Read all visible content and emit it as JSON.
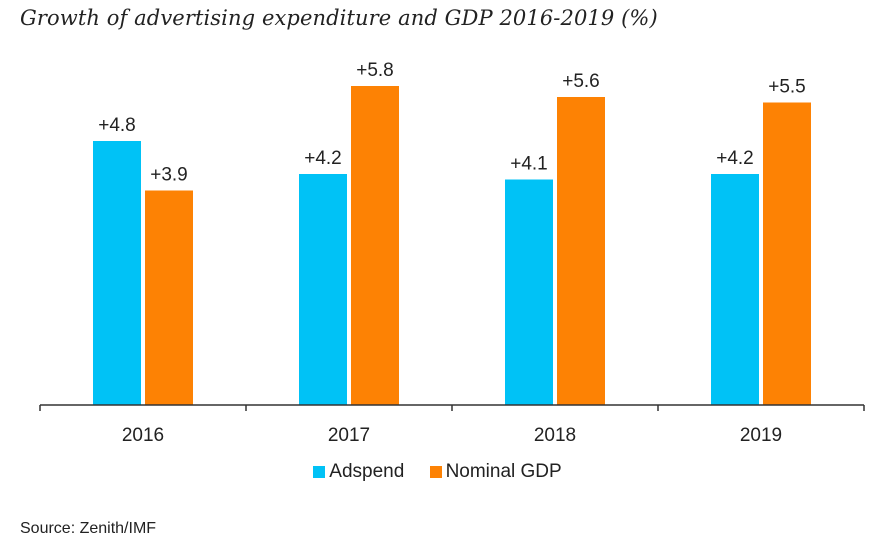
{
  "title": "Growth of advertising expenditure and GDP 2016-2019 (%)",
  "source": "Source: Zenith/IMF",
  "chart_data": {
    "type": "bar",
    "title": "Growth of advertising expenditure and GDP 2016-2019 (%)",
    "categories": [
      "2016",
      "2017",
      "2018",
      "2019"
    ],
    "series": [
      {
        "name": "Adspend",
        "color": "#00c2f6",
        "values": [
          4.8,
          4.2,
          4.1,
          4.2
        ],
        "labels": [
          "+4.8",
          "+4.2",
          "+4.1",
          "+4.2"
        ]
      },
      {
        "name": "Nominal GDP",
        "color": "#fd8204",
        "values": [
          3.9,
          5.8,
          5.6,
          5.5
        ],
        "labels": [
          "+3.9",
          "+5.8",
          "+5.6",
          "+5.5"
        ]
      }
    ],
    "ylim": [
      0,
      6
    ],
    "grid": false,
    "legend_position": "bottom"
  }
}
